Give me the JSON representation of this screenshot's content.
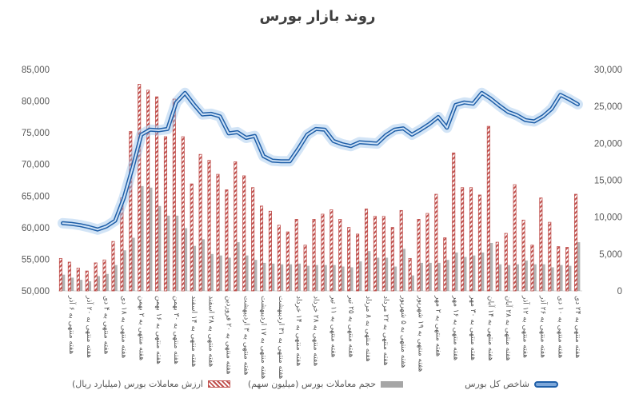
{
  "title": "روند بازار بورس",
  "chart_data": {
    "type": "bar",
    "title": "روند بازار بورس",
    "y_left": {
      "min": 50000,
      "max": 85000,
      "step": 5000,
      "ticks": [
        "50,000",
        "55,000",
        "60,000",
        "65,000",
        "70,000",
        "75,000",
        "80,000",
        "85,000"
      ]
    },
    "y_right": {
      "min": 0,
      "max": 30000,
      "step": 5000,
      "ticks": [
        "0",
        "5,000",
        "10,000",
        "15,000",
        "20,000",
        "25,000",
        "30,000"
      ]
    },
    "x_labels": [
      "هفته منتهی به ۶ آذر",
      "هفته منتهی به ۲۰ آذر",
      "هفته منتهی به ۴ دی",
      "هفته منتهی به ۱۸ دی",
      "هفته منتهی به ۲ بهمن",
      "هفته منتهی به ۱۶ بهمن",
      "هفته منتهی به ۳۰ بهمن",
      "هفته منتهی به ۱۴ اسفند",
      "هفته منتهی به ۲۸ اسفند",
      "هفته منتهی به ۲۰ فروردین",
      "هفته منتهی به ۳ اردیبهشت",
      "هفته منتهی به ۱۷ اردیبهشت",
      "هفته منتهی به ۳۱ اردیبهشت",
      "هفته منتهی به ۱۴ خرداد",
      "هفته منتهی به ۲۸ خرداد",
      "هفته منتهی به ۱۱ تیر",
      "هفته منتهی به ۲۵ تیر",
      "هفته منتهی به ۸ مرداد",
      "هفته منتهی به ۲۲ مرداد",
      "هفته منتهی به ۵ شهریور",
      "هفته منتهی به ۱۹ شهریور",
      "هفته منتهی به ۲ مهر",
      "هفته منتهی به ۱۶ مهر",
      "هفته منتهی به ۳۰ مهر",
      "هفته منتهی به ۱۴ آبان",
      "هفته منتهی به ۲۸ آبان",
      "هفته منتهی به ۱۲ آذر",
      "هفته منتهی به ۲۶ آذر",
      "هفته منتهی به ۱۰ دی",
      "هفته منتهی به ۲۴ دی"
    ],
    "series": [
      {
        "name": "ارزش معاملات بورس (میلیارد ریال)",
        "axis": "right",
        "type": "bar",
        "color": "#c0504d",
        "values": [
          4400,
          3900,
          3100,
          2700,
          3800,
          4200,
          6700,
          12600,
          21600,
          28000,
          27200,
          26300,
          20900,
          26000,
          20900,
          14500,
          18500,
          17700,
          15800,
          13700,
          17500,
          15600,
          14000,
          11500,
          10800,
          8900,
          8000,
          9700,
          6200,
          9700,
          10400,
          11000,
          9700,
          8600,
          7700,
          11100,
          10100,
          10100,
          8600,
          10900,
          4400,
          9700,
          10500,
          13100,
          7200,
          18700,
          14000,
          14000,
          13000,
          22300,
          6600,
          7800,
          14400,
          9600,
          6200,
          12600,
          9300,
          6000,
          5900,
          13100
        ]
      },
      {
        "name": "حجم معاملات بورس (میلیون سهم)",
        "axis": "right",
        "type": "bar",
        "color": "#a6a6a6",
        "values": [
          2200,
          1800,
          1500,
          1300,
          2000,
          2300,
          3500,
          5500,
          7200,
          14200,
          14000,
          11500,
          10200,
          10200,
          8500,
          6100,
          7000,
          5000,
          4800,
          4500,
          6600,
          4800,
          4200,
          3800,
          3700,
          3600,
          3600,
          3700,
          3400,
          3500,
          3500,
          3500,
          3300,
          3200,
          4000,
          5400,
          4500,
          4500,
          3300,
          5700,
          2100,
          3800,
          3800,
          3800,
          4200,
          5200,
          4600,
          4800,
          5200,
          6500,
          3600,
          3500,
          3600,
          4100,
          3600,
          3600,
          3200,
          3500,
          3400,
          6600
        ]
      },
      {
        "name": "شاخص کل بورس",
        "axis": "left",
        "type": "line",
        "color": "#1f5fa8",
        "values": [
          60700,
          60600,
          60400,
          60100,
          59700,
          60200,
          61100,
          64700,
          69500,
          74700,
          75500,
          75400,
          75600,
          79800,
          81300,
          79500,
          77900,
          78000,
          77600,
          74900,
          75100,
          74200,
          74500,
          71300,
          70600,
          70500,
          70500,
          72500,
          74700,
          75600,
          75500,
          73700,
          73200,
          72900,
          73500,
          73400,
          73300,
          74600,
          75500,
          75700,
          74700,
          75500,
          76400,
          77500,
          75800,
          79400,
          79800,
          79600,
          81300,
          80400,
          79300,
          78300,
          77800,
          77000,
          76800,
          77600,
          78800,
          81000,
          80300,
          79500
        ]
      }
    ],
    "legend_position": "bottom",
    "grid": false
  }
}
